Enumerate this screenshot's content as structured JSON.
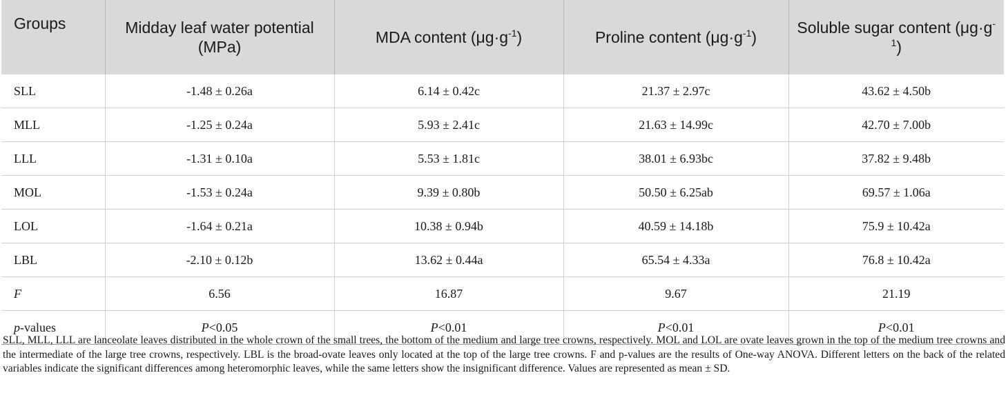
{
  "table": {
    "headers": [
      {
        "text": "Groups",
        "sup": ""
      },
      {
        "text": "Midday leaf water potential (MPa)",
        "sup": ""
      },
      {
        "text": "MDA content (μg·g",
        "sup": "-1",
        "close": ")"
      },
      {
        "text": "Proline content (μg·g",
        "sup": "-1",
        "close": ")"
      },
      {
        "text": "Soluble sugar content (μg·g",
        "sup": "-1",
        "close": ")"
      }
    ],
    "rows": [
      {
        "group": "SLL",
        "water": "-1.48 ± 0.26a",
        "mda": "6.14 ± 0.42c",
        "proline": "21.37 ± 2.97c",
        "sugar": "43.62 ± 4.50b"
      },
      {
        "group": "MLL",
        "water": "-1.25 ± 0.24a",
        "mda": "5.93 ± 2.41c",
        "proline": "21.63 ± 14.99c",
        "sugar": "42.70 ± 7.00b"
      },
      {
        "group": "LLL",
        "water": "-1.31 ± 0.10a",
        "mda": "5.53 ± 1.81c",
        "proline": "38.01 ± 6.93bc",
        "sugar": "37.82 ± 9.48b"
      },
      {
        "group": "MOL",
        "water": "-1.53 ± 0.24a",
        "mda": "9.39 ± 0.80b",
        "proline": "50.50 ± 6.25ab",
        "sugar": "69.57 ± 1.06a"
      },
      {
        "group": "LOL",
        "water": "-1.64 ± 0.21a",
        "mda": "10.38 ± 0.94b",
        "proline": "40.59 ± 14.18b",
        "sugar": "75.9 ± 10.42a"
      },
      {
        "group": "LBL",
        "water": "-2.10 ± 0.12b",
        "mda": "13.62 ± 0.44a",
        "proline": "65.54 ± 4.33a",
        "sugar": "76.8 ± 10.42a"
      }
    ],
    "f_row": {
      "label": "F",
      "water": "6.56",
      "mda": "16.87",
      "proline": "9.67",
      "sugar": "21.19"
    },
    "p_row": {
      "label_italic": "p",
      "label_rest": "-values",
      "p_sym": "P",
      "water": "<0.05",
      "mda": "<0.01",
      "proline": "<0.01",
      "sugar": "<0.01"
    }
  },
  "footnote": "SLL, MLL, LLL are lanceolate leaves distributed in the whole crown of the small trees, the bottom of the medium and large tree crowns, respectively. MOL and LOL are ovate leaves grown in the top of the medium tree crowns and the intermediate of the large tree crowns, respectively. LBL is the broad-ovate leaves only located at the top of the large tree crowns. F and p-values are the results of One-way ANOVA. Different letters on the back of the related variables indicate the significant differences among heteromorphic leaves, while the same letters show the insignificant difference. Values are represented as mean ± SD."
}
